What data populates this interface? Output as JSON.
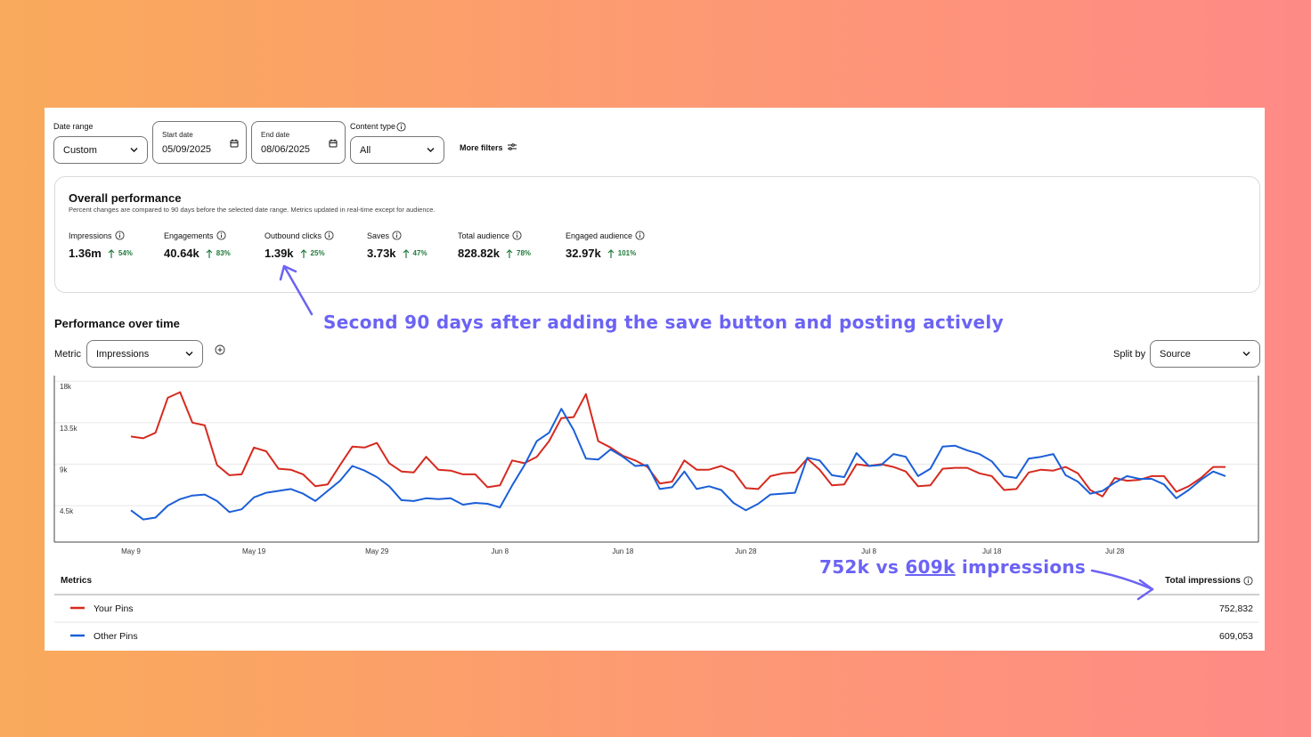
{
  "filters": {
    "date_range": {
      "label": "Date range",
      "value": "Custom"
    },
    "start_date": {
      "label": "Start date",
      "value": "05/09/2025"
    },
    "end_date": {
      "label": "End date",
      "value": "08/06/2025"
    },
    "content_type": {
      "label": "Content type",
      "value": "All"
    },
    "more_filters": "More filters"
  },
  "overall": {
    "title": "Overall performance",
    "subtitle": "Percent changes are compared to 90 days before the selected date range. Metrics updated in real-time except for audience.",
    "metrics": [
      {
        "label": "Impressions",
        "value": "1.36m",
        "change": "54%"
      },
      {
        "label": "Engagements",
        "value": "40.64k",
        "change": "83%"
      },
      {
        "label": "Outbound clicks",
        "value": "1.39k",
        "change": "25%"
      },
      {
        "label": "Saves",
        "value": "3.73k",
        "change": "47%"
      },
      {
        "label": "Total audience",
        "value": "828.82k",
        "change": "78%"
      },
      {
        "label": "Engaged audience",
        "value": "32.97k",
        "change": "101%"
      }
    ]
  },
  "annotations": {
    "first": "Second 90 days after adding the save button and posting actively",
    "second": {
      "before": "752k vs",
      "underlined": "609k",
      "after": "impressions"
    }
  },
  "performance": {
    "title": "Performance over time",
    "metric_label": "Metric",
    "metric_value": "Impressions",
    "split_label": "Split by",
    "split_value": "Source"
  },
  "chart_data": {
    "type": "line",
    "categories": [
      "May 9",
      null,
      null,
      null,
      null,
      null,
      null,
      null,
      null,
      null,
      "May 19",
      null,
      null,
      null,
      null,
      null,
      null,
      null,
      null,
      null,
      "May 29",
      null,
      null,
      null,
      null,
      null,
      null,
      null,
      null,
      null,
      "Jun 8",
      null,
      null,
      null,
      null,
      null,
      null,
      null,
      null,
      null,
      "Jun 18",
      null,
      null,
      null,
      null,
      null,
      null,
      null,
      null,
      null,
      "Jun 28",
      null,
      null,
      null,
      null,
      null,
      null,
      null,
      null,
      null,
      "Jul 8",
      null,
      null,
      null,
      null,
      null,
      null,
      null,
      null,
      null,
      "Jul 18",
      null,
      null,
      null,
      null,
      null,
      null,
      null,
      null,
      null,
      "Jul 28",
      null,
      null,
      null,
      null,
      null,
      null,
      null,
      null,
      null
    ],
    "series": [
      {
        "name": "Your Pins",
        "color": "#d62a1f",
        "values": [
          12000,
          11800,
          12400,
          16200,
          16800,
          13500,
          13200,
          8900,
          7800,
          7900,
          10800,
          10400,
          8500,
          8400,
          7900,
          6600,
          6800,
          8900,
          10900,
          10800,
          11300,
          9100,
          8200,
          8100,
          9800,
          8400,
          8300,
          7900,
          7900,
          6500,
          6700,
          9400,
          9100,
          9800,
          11500,
          14000,
          14100,
          16600,
          11500,
          10800,
          9900,
          9400,
          8700,
          6900,
          7100,
          9400,
          8400,
          8400,
          8800,
          8200,
          6400,
          6300,
          7700,
          8000,
          8100,
          9600,
          8400,
          6700,
          6800,
          9000,
          8800,
          9000,
          8700,
          8200,
          6600,
          6700,
          8500,
          8600,
          8600,
          8000,
          7700,
          6200,
          6300,
          8100,
          8400,
          8300,
          8700,
          8000,
          6200,
          5500,
          7500,
          7200,
          7300,
          7700,
          7700,
          6000,
          6600,
          7500,
          8700,
          8700
        ]
      },
      {
        "name": "Other Pins",
        "color": "#1b5fd8",
        "values": [
          4000,
          3000,
          3200,
          4500,
          5200,
          5600,
          5700,
          5000,
          3800,
          4100,
          5400,
          5900,
          6100,
          6300,
          5800,
          5000,
          6100,
          7200,
          8800,
          8300,
          7600,
          6600,
          5100,
          5000,
          5300,
          5200,
          5300,
          4600,
          4800,
          4700,
          4300,
          6700,
          8900,
          11500,
          12400,
          15000,
          12700,
          9600,
          9500,
          10600,
          9800,
          8800,
          8900,
          6300,
          6500,
          8200,
          6300,
          6600,
          6200,
          4800,
          4000,
          4700,
          5700,
          5800,
          5900,
          9700,
          9400,
          7800,
          7600,
          10200,
          8800,
          8900,
          10100,
          9800,
          7700,
          8500,
          10900,
          11000,
          10500,
          10100,
          9300,
          7700,
          7500,
          9600,
          9800,
          10100,
          7800,
          7100,
          5800,
          6100,
          7000,
          7700,
          7400,
          7400,
          6800,
          5300,
          6200,
          7300,
          8200,
          7700
        ]
      }
    ],
    "ylim": [
      550,
      18600
    ],
    "yticks": [
      {
        "value": 4500,
        "label": "4.5k"
      },
      {
        "value": 9000,
        "label": "9k"
      },
      {
        "value": 13500,
        "label": "13.5k"
      },
      {
        "value": 18000,
        "label": "18k"
      }
    ],
    "grid": true
  },
  "table": {
    "header": {
      "name": "Metrics",
      "total": "Total impressions"
    },
    "totals": [
      "752,832",
      "609,053"
    ]
  }
}
